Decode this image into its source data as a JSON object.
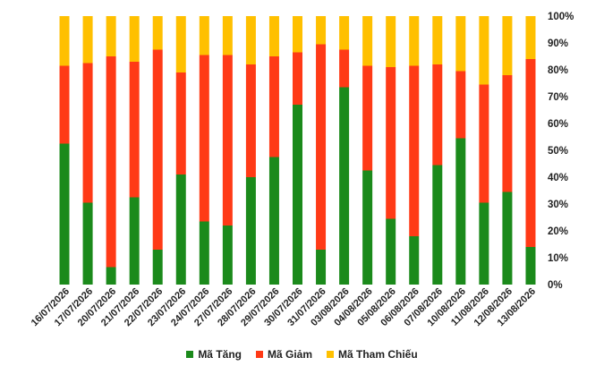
{
  "chart_data": {
    "type": "bar",
    "stacked": true,
    "percent": true,
    "categories": [
      "16/07/2026",
      "17/07/2026",
      "20/07/2026",
      "21/07/2026",
      "22/07/2026",
      "23/07/2026",
      "24/07/2026",
      "27/07/2026",
      "28/07/2026",
      "29/07/2026",
      "30/07/2026",
      "31/07/2026",
      "03/08/2026",
      "04/08/2026",
      "05/08/2026",
      "06/08/2026",
      "07/08/2026",
      "10/08/2026",
      "11/08/2026",
      "12/08/2026",
      "13/08/2026"
    ],
    "series": [
      {
        "name": "Mã Tăng",
        "color": "#1b8a1b",
        "values": [
          52.5,
          30.5,
          6.5,
          32.5,
          13,
          41,
          23.5,
          22,
          40,
          47.5,
          67,
          13,
          73.5,
          42.5,
          24.5,
          18,
          44.5,
          54.5,
          30.5,
          34.5,
          14
        ]
      },
      {
        "name": "Mã Giảm",
        "color": "#ff3a16",
        "values": [
          29,
          52,
          78.5,
          50.5,
          74.5,
          38,
          62,
          63.5,
          42,
          37.5,
          19.5,
          76.5,
          14,
          39,
          56.5,
          63.5,
          37.5,
          25,
          44,
          43.5,
          70
        ]
      },
      {
        "name": "Mã Tham Chiếu",
        "color": "#ffc000",
        "values": [
          18.5,
          17.5,
          15,
          17,
          12.5,
          21,
          14.5,
          14.5,
          18,
          15,
          13.5,
          10.5,
          12.5,
          18.5,
          19,
          18.5,
          18,
          20.5,
          25.5,
          22,
          16
        ]
      }
    ],
    "y_ticks": [
      "0%",
      "10%",
      "20%",
      "30%",
      "40%",
      "50%",
      "60%",
      "70%",
      "80%",
      "90%",
      "100%"
    ],
    "ylim": [
      0,
      100
    ],
    "y_axis_position": "right",
    "legend_position": "bottom",
    "grid": false
  }
}
